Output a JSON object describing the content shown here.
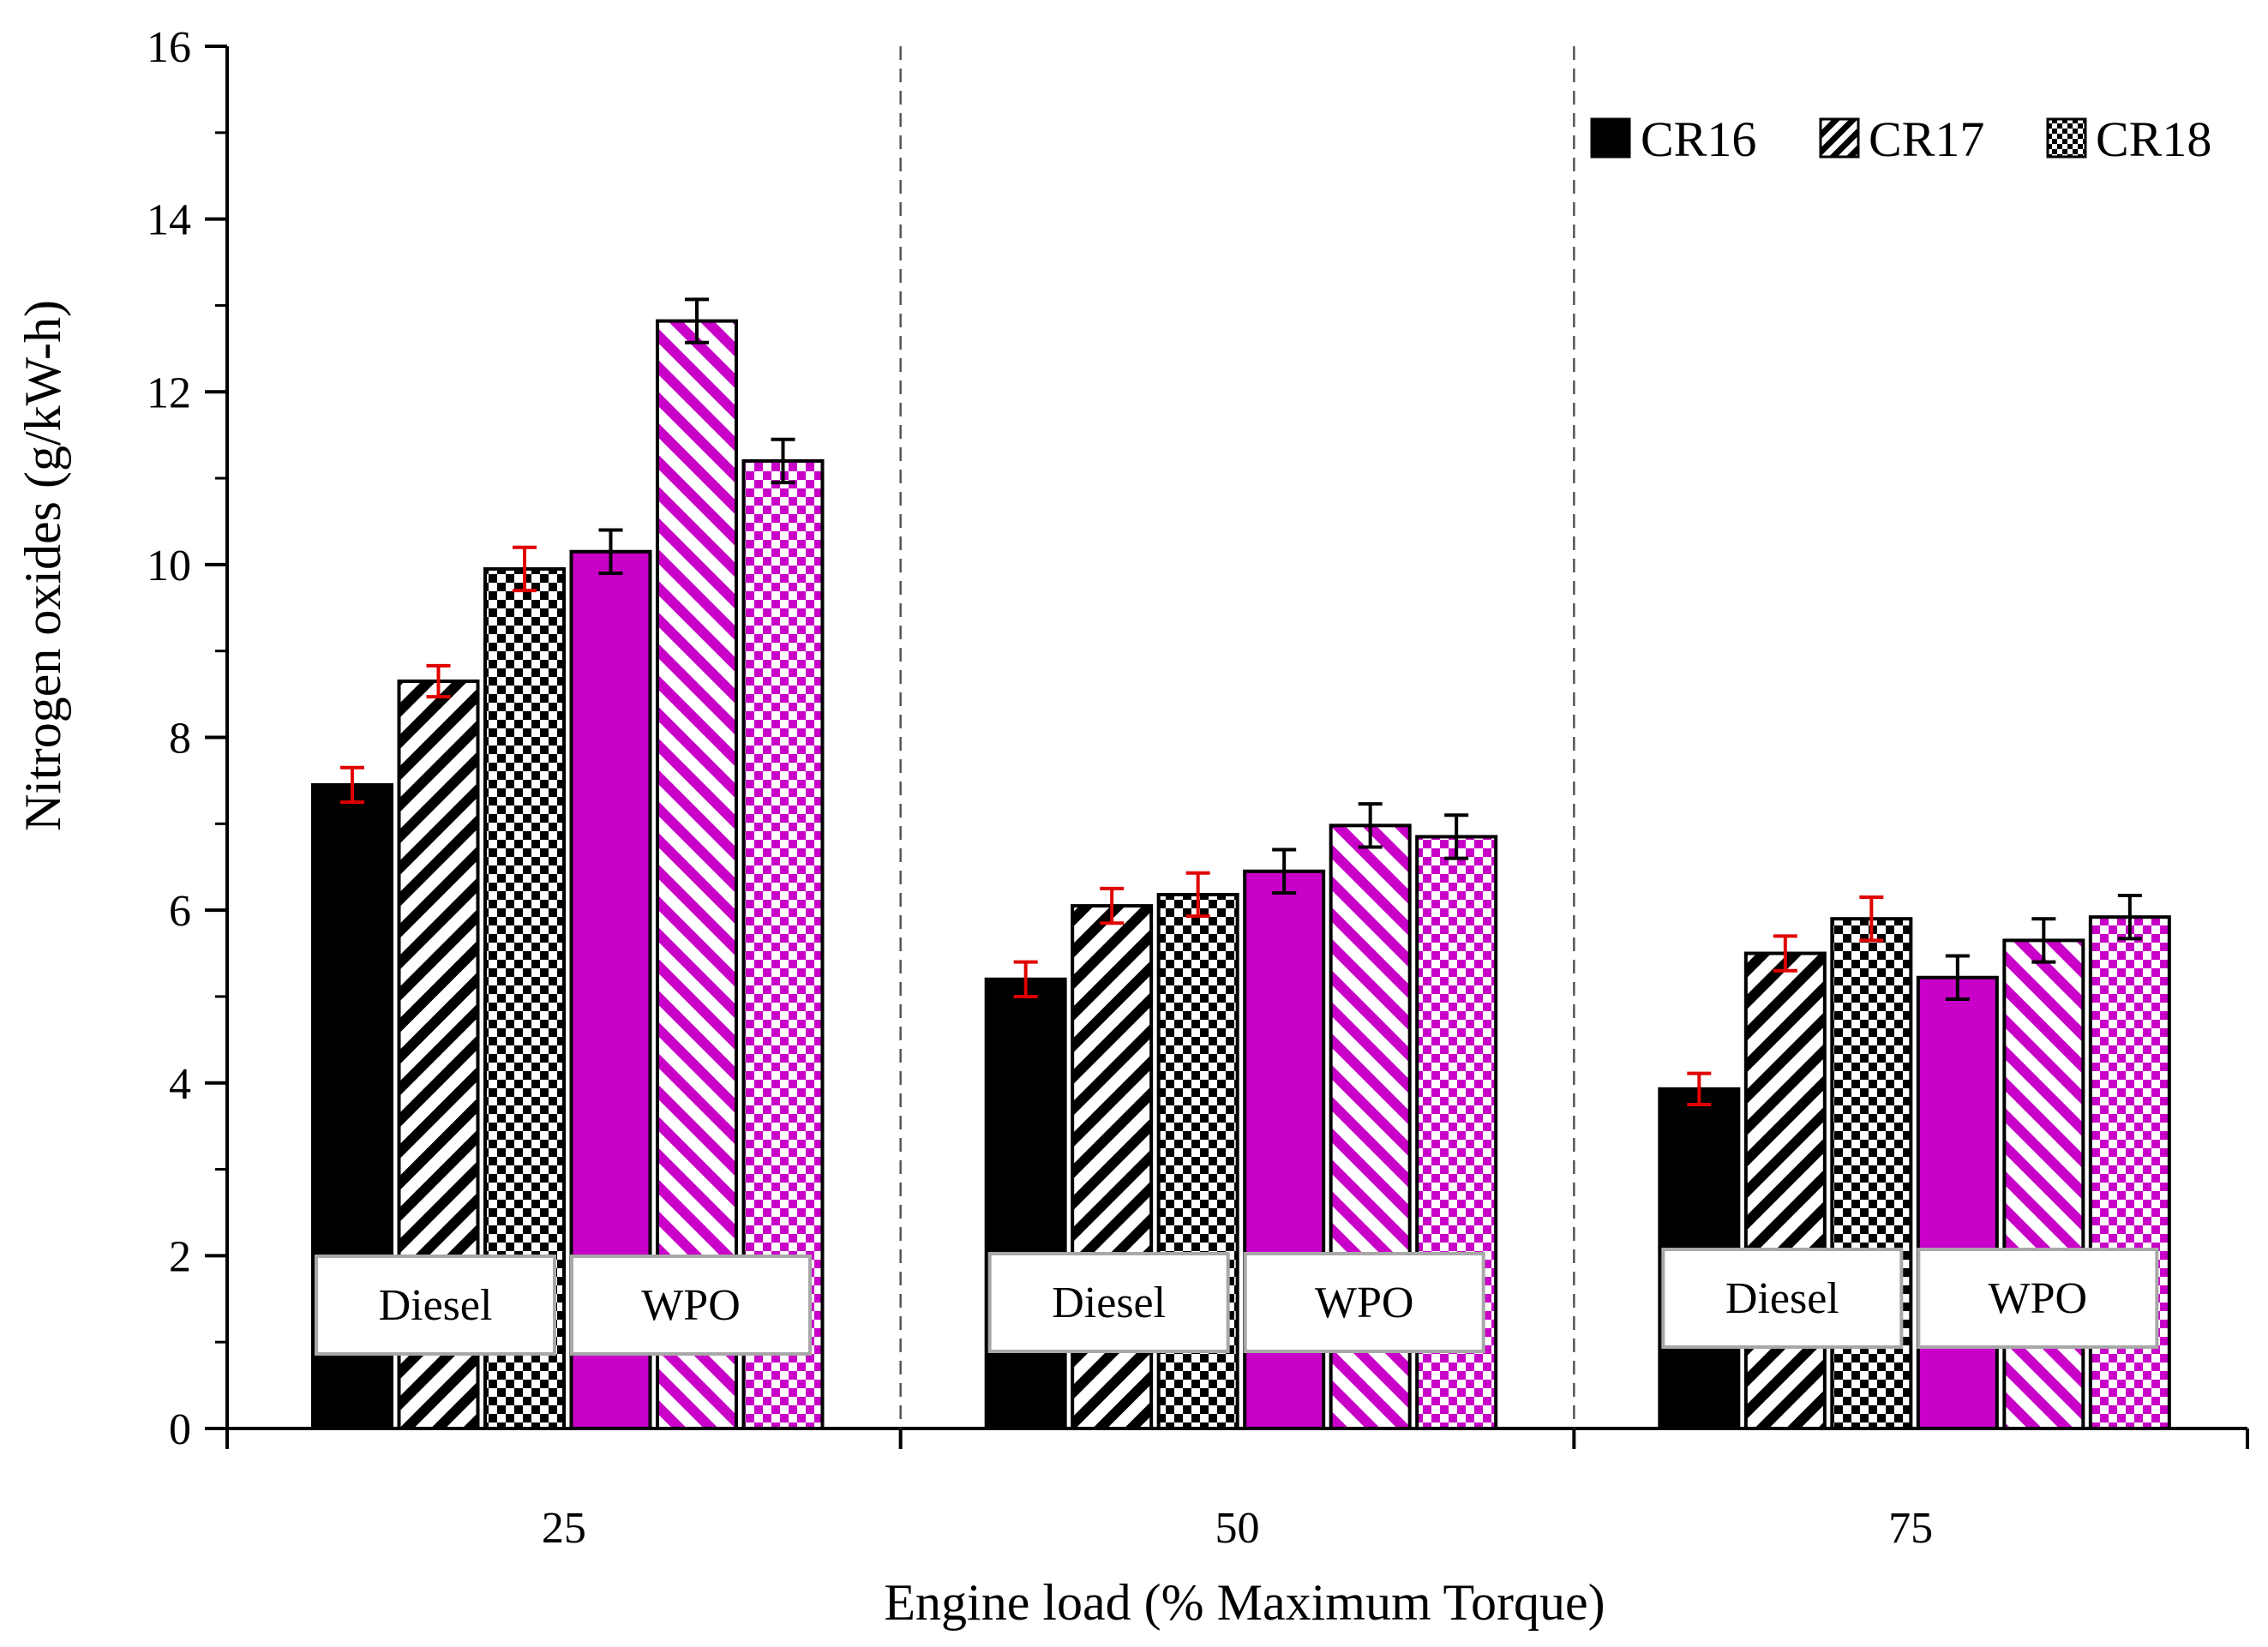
{
  "chart_data": {
    "type": "bar",
    "title": "",
    "xlabel": "Engine load (% Maximum Torque)",
    "ylabel": "Nitrogen oxides (g/kW-h)",
    "ylim": [
      0,
      16
    ],
    "yticks": [
      "0",
      "2",
      "4",
      "6",
      "8",
      "10",
      "12",
      "14",
      "16"
    ],
    "categories": [
      "25",
      "50",
      "75"
    ],
    "fuels": [
      "Diesel",
      "WPO"
    ],
    "legend": [
      "CR16",
      "CR17",
      "CR18"
    ],
    "legend_position": "top-right",
    "colors": {
      "Diesel": "#000000",
      "WPO": "#c800c8",
      "error_diesel": "#e00000",
      "error_wpo": "#000000"
    },
    "series": [
      {
        "name": "Diesel CR16",
        "fuel": "Diesel",
        "cr": "CR16",
        "values": [
          7.45,
          5.2,
          3.93
        ],
        "errors": [
          0.2,
          0.2,
          0.18
        ]
      },
      {
        "name": "Diesel CR17",
        "fuel": "Diesel",
        "cr": "CR17",
        "values": [
          8.65,
          6.05,
          5.5
        ],
        "errors": [
          0.18,
          0.2,
          0.2
        ]
      },
      {
        "name": "Diesel CR18",
        "fuel": "Diesel",
        "cr": "CR18",
        "values": [
          9.95,
          6.18,
          5.9
        ],
        "errors": [
          0.25,
          0.25,
          0.25
        ]
      },
      {
        "name": "WPO CR16",
        "fuel": "WPO",
        "cr": "CR16",
        "values": [
          10.15,
          6.45,
          5.22
        ],
        "errors": [
          0.25,
          0.25,
          0.25
        ]
      },
      {
        "name": "WPO CR17",
        "fuel": "WPO",
        "cr": "CR17",
        "values": [
          12.82,
          6.98,
          5.65
        ],
        "errors": [
          0.25,
          0.25,
          0.25
        ]
      },
      {
        "name": "WPO CR18",
        "fuel": "WPO",
        "cr": "CR18",
        "values": [
          11.2,
          6.85,
          5.92
        ],
        "errors": [
          0.25,
          0.25,
          0.25
        ]
      }
    ]
  }
}
